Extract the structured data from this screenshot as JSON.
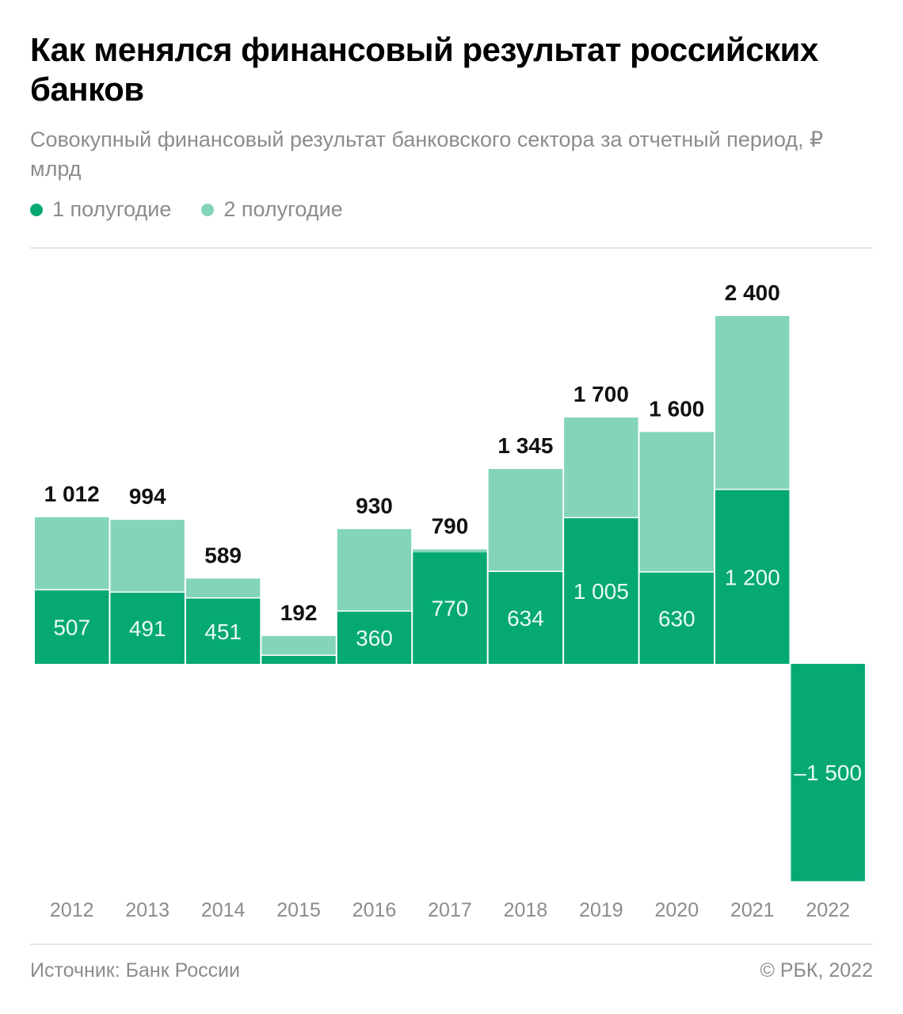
{
  "title": "Как менялся финансовый результат российских банков",
  "subtitle": "Совокупный финансовый результат банковского сектора за отчетный период, ₽ млрд",
  "footer": {
    "source": "Источник: Банк России",
    "copyright": "© РБК, 2022"
  },
  "colors": {
    "h1": "#06a874",
    "h2": "#84d5b8"
  },
  "chart_data": {
    "type": "bar",
    "stacked": true,
    "categories": [
      "2012",
      "2013",
      "2014",
      "2015",
      "2016",
      "2017",
      "2018",
      "2019",
      "2020",
      "2021",
      "2022"
    ],
    "series": [
      {
        "name": "1 полугодие",
        "values": [
          507,
          491,
          451,
          55,
          360,
          770,
          634,
          1005,
          630,
          1200,
          -1500
        ],
        "labels": [
          "507",
          "491",
          "451",
          null,
          "360",
          "770",
          "634",
          "1 005",
          "630",
          "1 200",
          "–1 500"
        ]
      },
      {
        "name": "2 полугодие",
        "values": [
          505,
          503,
          138,
          137,
          570,
          20,
          711,
          695,
          970,
          1200,
          null
        ]
      }
    ],
    "totals": [
      1012,
      994,
      589,
      192,
      930,
      790,
      1345,
      1700,
      1600,
      2400,
      null
    ],
    "total_labels": [
      "1 012",
      "994",
      "589",
      "192",
      "930",
      "790",
      "1 345",
      "1 700",
      "1 600",
      "2 400",
      null
    ],
    "ylim": [
      -1500,
      2400
    ],
    "grid": false,
    "legend": "top-left"
  }
}
